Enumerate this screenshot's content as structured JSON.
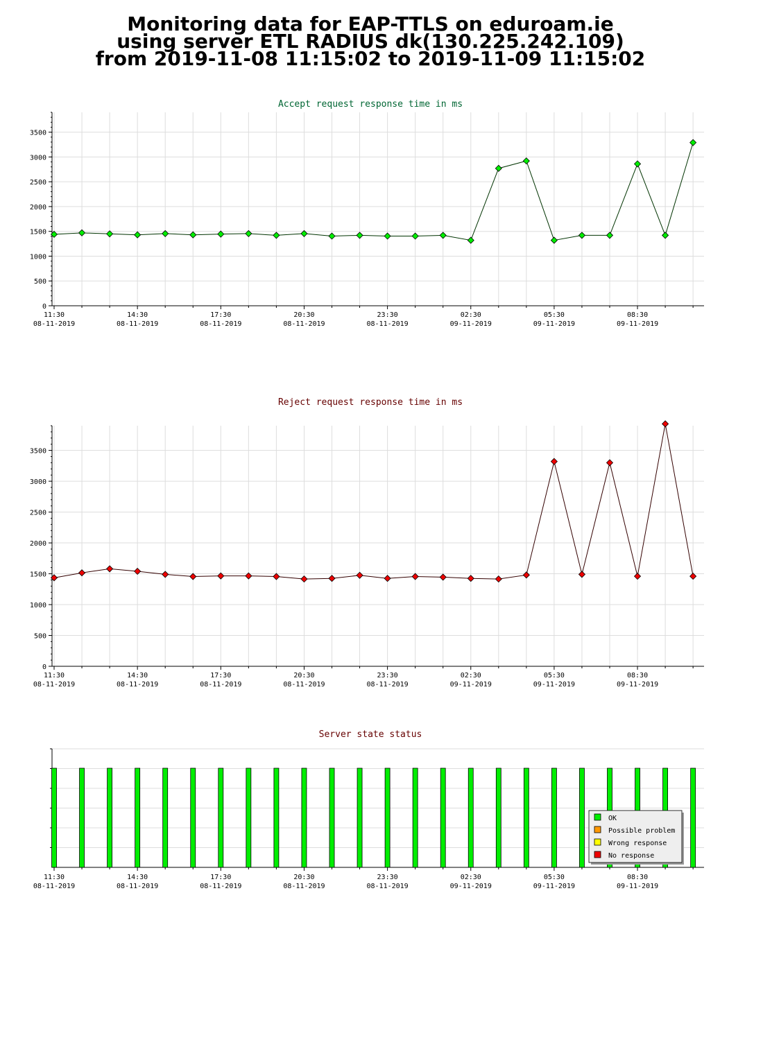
{
  "page_title": {
    "line1": "Monitoring data for EAP-TTLS on eduroam.ie",
    "line2": "using server ETL RADIUS dk(130.225.242.109)",
    "line3": "from 2019-11-08 11:15:02 to 2019-11-09 11:15:02"
  },
  "colors": {
    "accept_title": "#006633",
    "reject_title": "#660000",
    "status_title": "#660000",
    "accept_line": "#003300",
    "accept_marker": "#00ee00",
    "reject_line": "#330000",
    "reject_marker": "#ee0000",
    "grid": "#dddddd",
    "ok": "#00ee00",
    "possible_problem": "#ff9900",
    "wrong_response": "#ffff00",
    "no_response": "#ee0000"
  },
  "x_axis": {
    "ticks": [
      {
        "time": "11:30",
        "date": "08-11-2019"
      },
      {
        "time": "14:30",
        "date": "08-11-2019"
      },
      {
        "time": "17:30",
        "date": "08-11-2019"
      },
      {
        "time": "20:30",
        "date": "08-11-2019"
      },
      {
        "time": "23:30",
        "date": "08-11-2019"
      },
      {
        "time": "02:30",
        "date": "09-11-2019"
      },
      {
        "time": "05:30",
        "date": "09-11-2019"
      },
      {
        "time": "08:30",
        "date": "09-11-2019"
      }
    ]
  },
  "chart_data": [
    {
      "type": "line",
      "title": "Accept request response time in ms",
      "ylim": [
        0,
        3900
      ],
      "yticks": [
        0,
        500,
        1000,
        1500,
        2000,
        2500,
        3000,
        3500
      ],
      "grid": true,
      "values": [
        1440,
        1470,
        1450,
        1430,
        1455,
        1430,
        1445,
        1455,
        1420,
        1455,
        1405,
        1420,
        1405,
        1405,
        1420,
        1320,
        2770,
        2920,
        1320,
        1420,
        1420,
        2860,
        1420,
        3290
      ]
    },
    {
      "type": "line",
      "title": "Reject request response time in ms",
      "ylim": [
        0,
        3900
      ],
      "yticks": [
        0,
        500,
        1000,
        1500,
        2000,
        2500,
        3000,
        3500
      ],
      "grid": true,
      "values": [
        1435,
        1515,
        1580,
        1540,
        1490,
        1455,
        1465,
        1465,
        1455,
        1415,
        1425,
        1475,
        1425,
        1455,
        1445,
        1425,
        1415,
        1480,
        3320,
        1490,
        3300,
        1460,
        3930,
        1460
      ]
    },
    {
      "type": "bar",
      "title": "Server state status",
      "statuses": [
        "OK",
        "OK",
        "OK",
        "OK",
        "OK",
        "OK",
        "OK",
        "OK",
        "OK",
        "OK",
        "OK",
        "OK",
        "OK",
        "OK",
        "OK",
        "OK",
        "OK",
        "OK",
        "OK",
        "OK",
        "OK",
        "OK",
        "OK",
        "OK"
      ],
      "legend": [
        "OK",
        "Possible problem",
        "Wrong response",
        "No response"
      ],
      "legend_placement": "bottom-right"
    }
  ]
}
